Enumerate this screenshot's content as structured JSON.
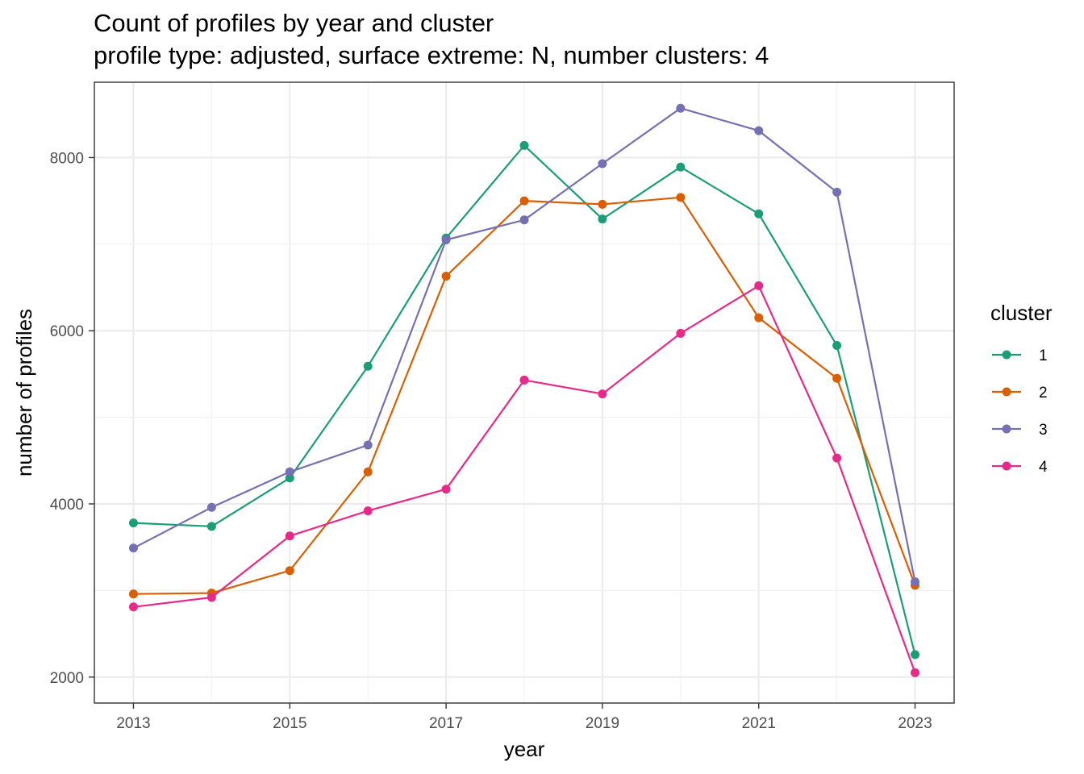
{
  "chart_data": {
    "type": "line",
    "title": "Count of profiles by year and cluster",
    "subtitle": "profile type: adjusted, surface extreme: N, number clusters: 4",
    "xlabel": "year",
    "ylabel": "number of profiles",
    "x": [
      2013,
      2014,
      2015,
      2016,
      2017,
      2018,
      2019,
      2020,
      2021,
      2022,
      2023
    ],
    "x_ticks": [
      "2013",
      "2015",
      "2017",
      "2019",
      "2021",
      "2023"
    ],
    "y_ticks": [
      "2000",
      "4000",
      "6000",
      "8000"
    ],
    "xlim": [
      2012.5,
      2023.5
    ],
    "ylim": [
      1700,
      8870
    ],
    "grid": true,
    "legend": {
      "title": "cluster",
      "position": "right"
    },
    "series": [
      {
        "name": "1",
        "color": "#1B9E77",
        "values": [
          3780,
          3740,
          4300,
          5590,
          7070,
          8140,
          7290,
          7890,
          7350,
          5830,
          2260
        ]
      },
      {
        "name": "2",
        "color": "#D95F02",
        "values": [
          2960,
          2970,
          3230,
          4370,
          6630,
          7500,
          7460,
          7540,
          6150,
          5450,
          3060
        ]
      },
      {
        "name": "3",
        "color": "#7570B3",
        "values": [
          3490,
          3960,
          4370,
          4680,
          7050,
          7280,
          7930,
          8570,
          8310,
          7600,
          3100
        ]
      },
      {
        "name": "4",
        "color": "#E7298A",
        "values": [
          2810,
          2920,
          3630,
          3920,
          4170,
          5430,
          5270,
          5970,
          6520,
          4530,
          2050
        ]
      }
    ]
  }
}
